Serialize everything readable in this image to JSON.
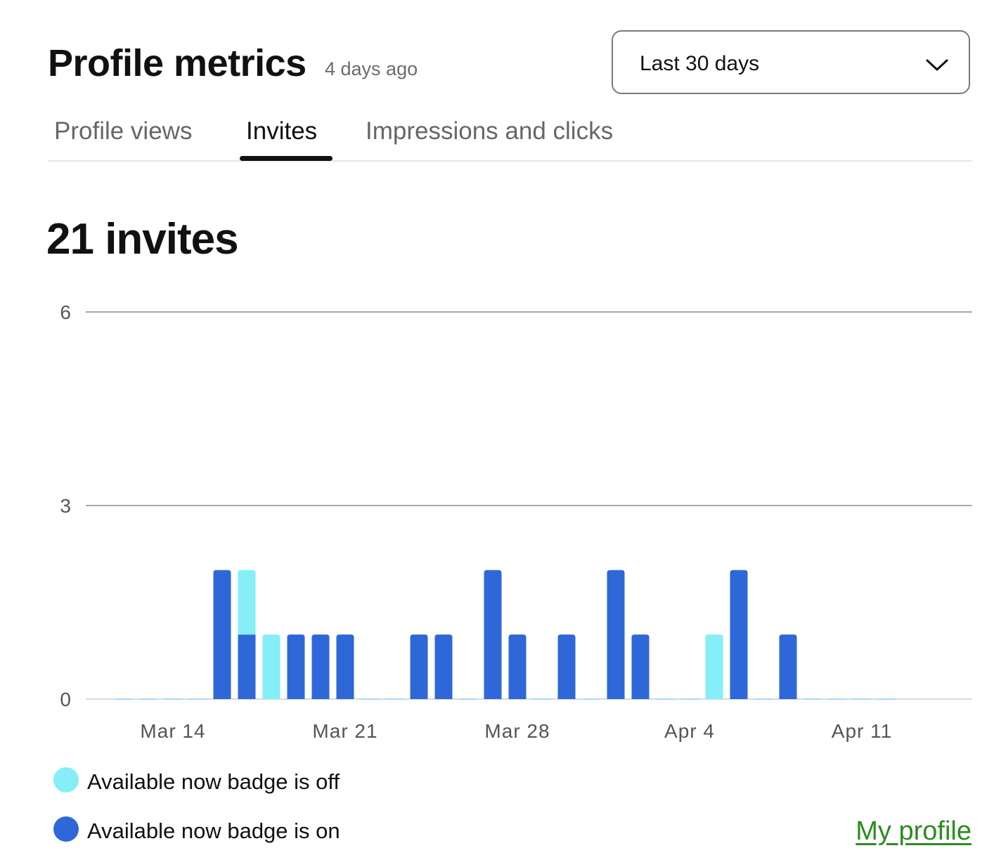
{
  "header": {
    "title": "Profile metrics",
    "updated": "4 days ago"
  },
  "range_select": {
    "value": "Last 30 days",
    "icon": "chevron-down-icon"
  },
  "tabs": [
    {
      "label": "Profile views",
      "active": false
    },
    {
      "label": "Invites",
      "active": true
    },
    {
      "label": "Impressions and clicks",
      "active": false
    }
  ],
  "summary": {
    "total_label": "21 invites"
  },
  "legend": {
    "off_label": "Available now badge is off",
    "on_label": "Available now badge is on"
  },
  "footer": {
    "link_label": "My profile"
  },
  "colors": {
    "badge_off": "#85EEF7",
    "badge_on": "#2E67D7",
    "grid": "#8a8a8a",
    "link": "#2E8B22"
  },
  "chart_data": {
    "type": "bar",
    "stacked": true,
    "dates": [
      "Mar 12",
      "Mar 13",
      "Mar 14",
      "Mar 15",
      "Mar 16",
      "Mar 17",
      "Mar 18",
      "Mar 19",
      "Mar 20",
      "Mar 21",
      "Mar 22",
      "Mar 23",
      "Mar 24",
      "Mar 25",
      "Mar 26",
      "Mar 27",
      "Mar 28",
      "Mar 29",
      "Mar 30",
      "Mar 31",
      "Apr 1",
      "Apr 2",
      "Apr 3",
      "Apr 4",
      "Apr 5",
      "Apr 6",
      "Apr 7",
      "Apr 8",
      "Apr 9",
      "Apr 10",
      "Apr 11",
      "Apr 12"
    ],
    "series": [
      {
        "name": "Available now badge is on",
        "values": [
          0,
          0,
          0,
          0,
          2,
          1,
          0,
          1,
          1,
          1,
          0,
          0,
          1,
          1,
          0,
          2,
          1,
          0,
          1,
          0,
          2,
          1,
          0,
          0,
          0,
          2,
          0,
          1,
          0,
          0,
          0,
          0
        ]
      },
      {
        "name": "Available now badge is off",
        "values": [
          0,
          0,
          0,
          0,
          0,
          1,
          1,
          0,
          0,
          0,
          0,
          0,
          0,
          0,
          0,
          0,
          0,
          0,
          0,
          0,
          0,
          0,
          0,
          0,
          1,
          0,
          0,
          0,
          0,
          0,
          0,
          0
        ]
      }
    ],
    "xticks": [
      "Mar 14",
      "Mar 21",
      "Mar 28",
      "Apr 4",
      "Apr 11"
    ],
    "yticks": [
      0,
      3,
      6
    ],
    "ylim": [
      0,
      6
    ],
    "grid": true,
    "legend_position": "bottom-left"
  }
}
